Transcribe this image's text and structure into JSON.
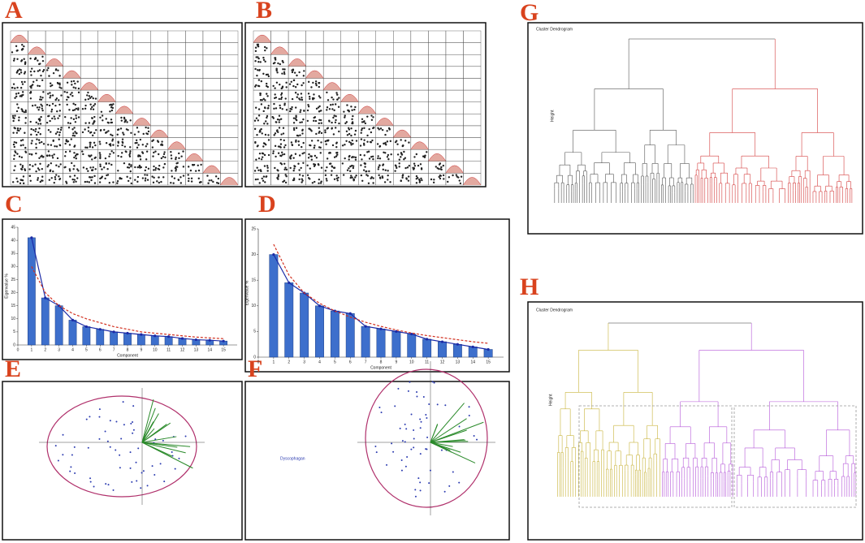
{
  "panels": [
    "A",
    "B",
    "C",
    "D",
    "E",
    "F",
    "G",
    "H"
  ],
  "dendrograms": [
    {
      "title": "Cluster Dendrogram",
      "ylabel": "Height"
    },
    {
      "title": "Cluster Dendrogram",
      "ylabel": "Height"
    }
  ],
  "biplot_label": "Dyscophagan",
  "chart_data": [
    {
      "type": "bar",
      "xlabel": "Component",
      "ylabel": "Eigenvalue %",
      "x": [
        1,
        2,
        3,
        4,
        5,
        6,
        7,
        8,
        9,
        10,
        11,
        12,
        13,
        14,
        15
      ],
      "xlim": [
        0,
        16
      ],
      "xticks": [
        0,
        1,
        2,
        3,
        4,
        5,
        6,
        7,
        8,
        9,
        10,
        11,
        12,
        13,
        14,
        15
      ],
      "ylim": [
        0,
        45
      ],
      "yticks": [
        0,
        5,
        10,
        15,
        20,
        25,
        30,
        35,
        40,
        45
      ],
      "series": [
        {
          "kind": "bar",
          "color": "#3d6fcc",
          "values": [
            41,
            18,
            15,
            9.5,
            7,
            6,
            5,
            4.5,
            4,
            3.5,
            3.2,
            2.5,
            2,
            1.8,
            1.5
          ]
        },
        {
          "kind": "line",
          "color": "#1b2aa6",
          "values": [
            41,
            18,
            15,
            9.5,
            7,
            6,
            5,
            4.5,
            4,
            3.5,
            3.2,
            2.5,
            2,
            1.8,
            1.5
          ]
        },
        {
          "kind": "dash",
          "color": "#d2301f",
          "values": [
            30,
            20,
            15,
            12,
            10,
            8.5,
            7,
            6,
            5,
            4.5,
            4,
            3.5,
            3,
            2.7,
            2.4
          ]
        }
      ]
    },
    {
      "type": "bar",
      "xlabel": "Component",
      "ylabel": "Eigenvalue %",
      "x": [
        1,
        2,
        3,
        4,
        5,
        6,
        7,
        8,
        9,
        10,
        11,
        12,
        13,
        14,
        15
      ],
      "xlim": [
        0,
        16
      ],
      "xticks": [
        0,
        1,
        2,
        3,
        4,
        5,
        6,
        7,
        8,
        9,
        10,
        11,
        12,
        13,
        14,
        15
      ],
      "ylim": [
        0,
        25
      ],
      "yticks": [
        0,
        5,
        10,
        15,
        20,
        25
      ],
      "series": [
        {
          "kind": "bar",
          "color": "#3d6fcc",
          "values": [
            20,
            14.5,
            12.5,
            10,
            9,
            8.5,
            6,
            5.5,
            5,
            4.5,
            3.5,
            3,
            2.5,
            2,
            1.5
          ]
        },
        {
          "kind": "line",
          "color": "#1b2aa6",
          "values": [
            20,
            14.5,
            12.5,
            10,
            9,
            8.5,
            6,
            5.5,
            5,
            4.5,
            3.5,
            3,
            2.5,
            2,
            1.5
          ]
        },
        {
          "kind": "dash",
          "color": "#d2301f",
          "values": [
            22,
            16,
            12.5,
            10.5,
            9,
            7.8,
            6.8,
            6,
            5.3,
            4.7,
            4.2,
            3.8,
            3.4,
            3,
            2.7
          ]
        }
      ]
    }
  ]
}
